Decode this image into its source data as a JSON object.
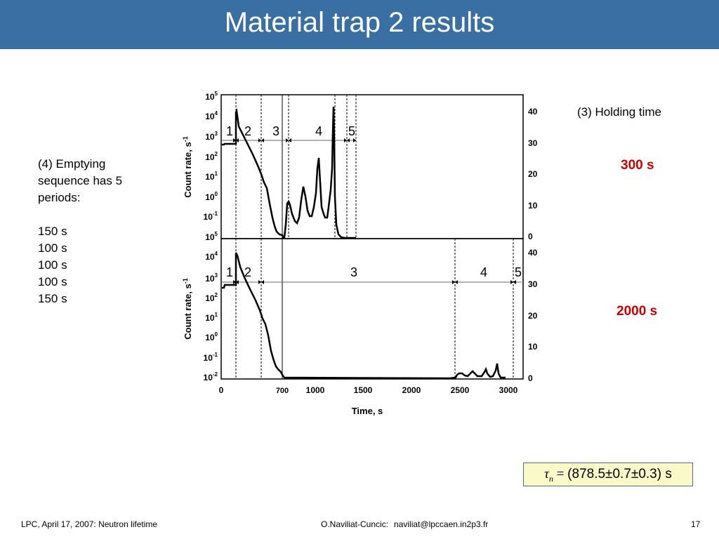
{
  "title": "Material trap 2 results",
  "left_text": {
    "lines": [
      "(4) Emptying",
      "sequence has 5",
      "periods:",
      "",
      "150 s",
      "100 s",
      "100 s",
      "100 s",
      "150 s"
    ]
  },
  "holding_label": "(3) Holding time",
  "holding_times": [
    "300 s",
    "2000 s"
  ],
  "formula": {
    "symbol": "τ",
    "subscript": "n",
    "rest": " = ",
    "value": "(878.5±0.7±0.3) s"
  },
  "footer": {
    "left": "LPC, April 17, 2007: Neutron lifetime",
    "author": "O.Naviliat-Cuncic:",
    "email": "naviliat@lpccaen.in2p3.fr",
    "page": "17"
  },
  "colors": {
    "header_bg": "#3a6fa3",
    "accent_red": "#cc0000",
    "formula_bg": "#fafac8"
  },
  "chart_data": [
    {
      "type": "line",
      "panel": "top",
      "holding_time": "300 s",
      "ylabel": "Count rate, s-1",
      "y_left_scale": "log",
      "y_left_ticks": [
        "10^5",
        "10^4",
        "10^3",
        "10^2",
        "10^1",
        "10^0",
        "10^-1"
      ],
      "y_left_range": [
        0.1,
        100000
      ],
      "y_right_ticks": [
        "40",
        "30",
        "20",
        "10",
        "0"
      ],
      "y_right_range": [
        0,
        40
      ],
      "period_labels": [
        "1",
        "2",
        "3",
        "4",
        "5"
      ],
      "period_boundaries": [
        150,
        400,
        700,
        800,
        1000,
        1200,
        1350
      ]
    },
    {
      "type": "line",
      "panel": "bottom",
      "holding_time": "2000 s",
      "ylabel": "Count rate, s-1",
      "xlabel": "Time, s",
      "y_left_scale": "log",
      "y_left_ticks": [
        "10^5",
        "10^4",
        "10^3",
        "10^2",
        "10^1",
        "10^0",
        "10^-1",
        "10^-2"
      ],
      "y_left_range": [
        0.01,
        100000
      ],
      "y_right_ticks": [
        "40",
        "30",
        "20",
        "10",
        "0"
      ],
      "y_right_range": [
        0,
        40
      ],
      "x_ticks": [
        "0",
        "700",
        "1000",
        "1500",
        "2000",
        "2500",
        "3000"
      ],
      "period_labels": [
        "1",
        "2",
        "3",
        "4",
        "5"
      ],
      "period_boundaries": [
        150,
        400,
        700,
        2400,
        3000,
        3050
      ]
    }
  ]
}
